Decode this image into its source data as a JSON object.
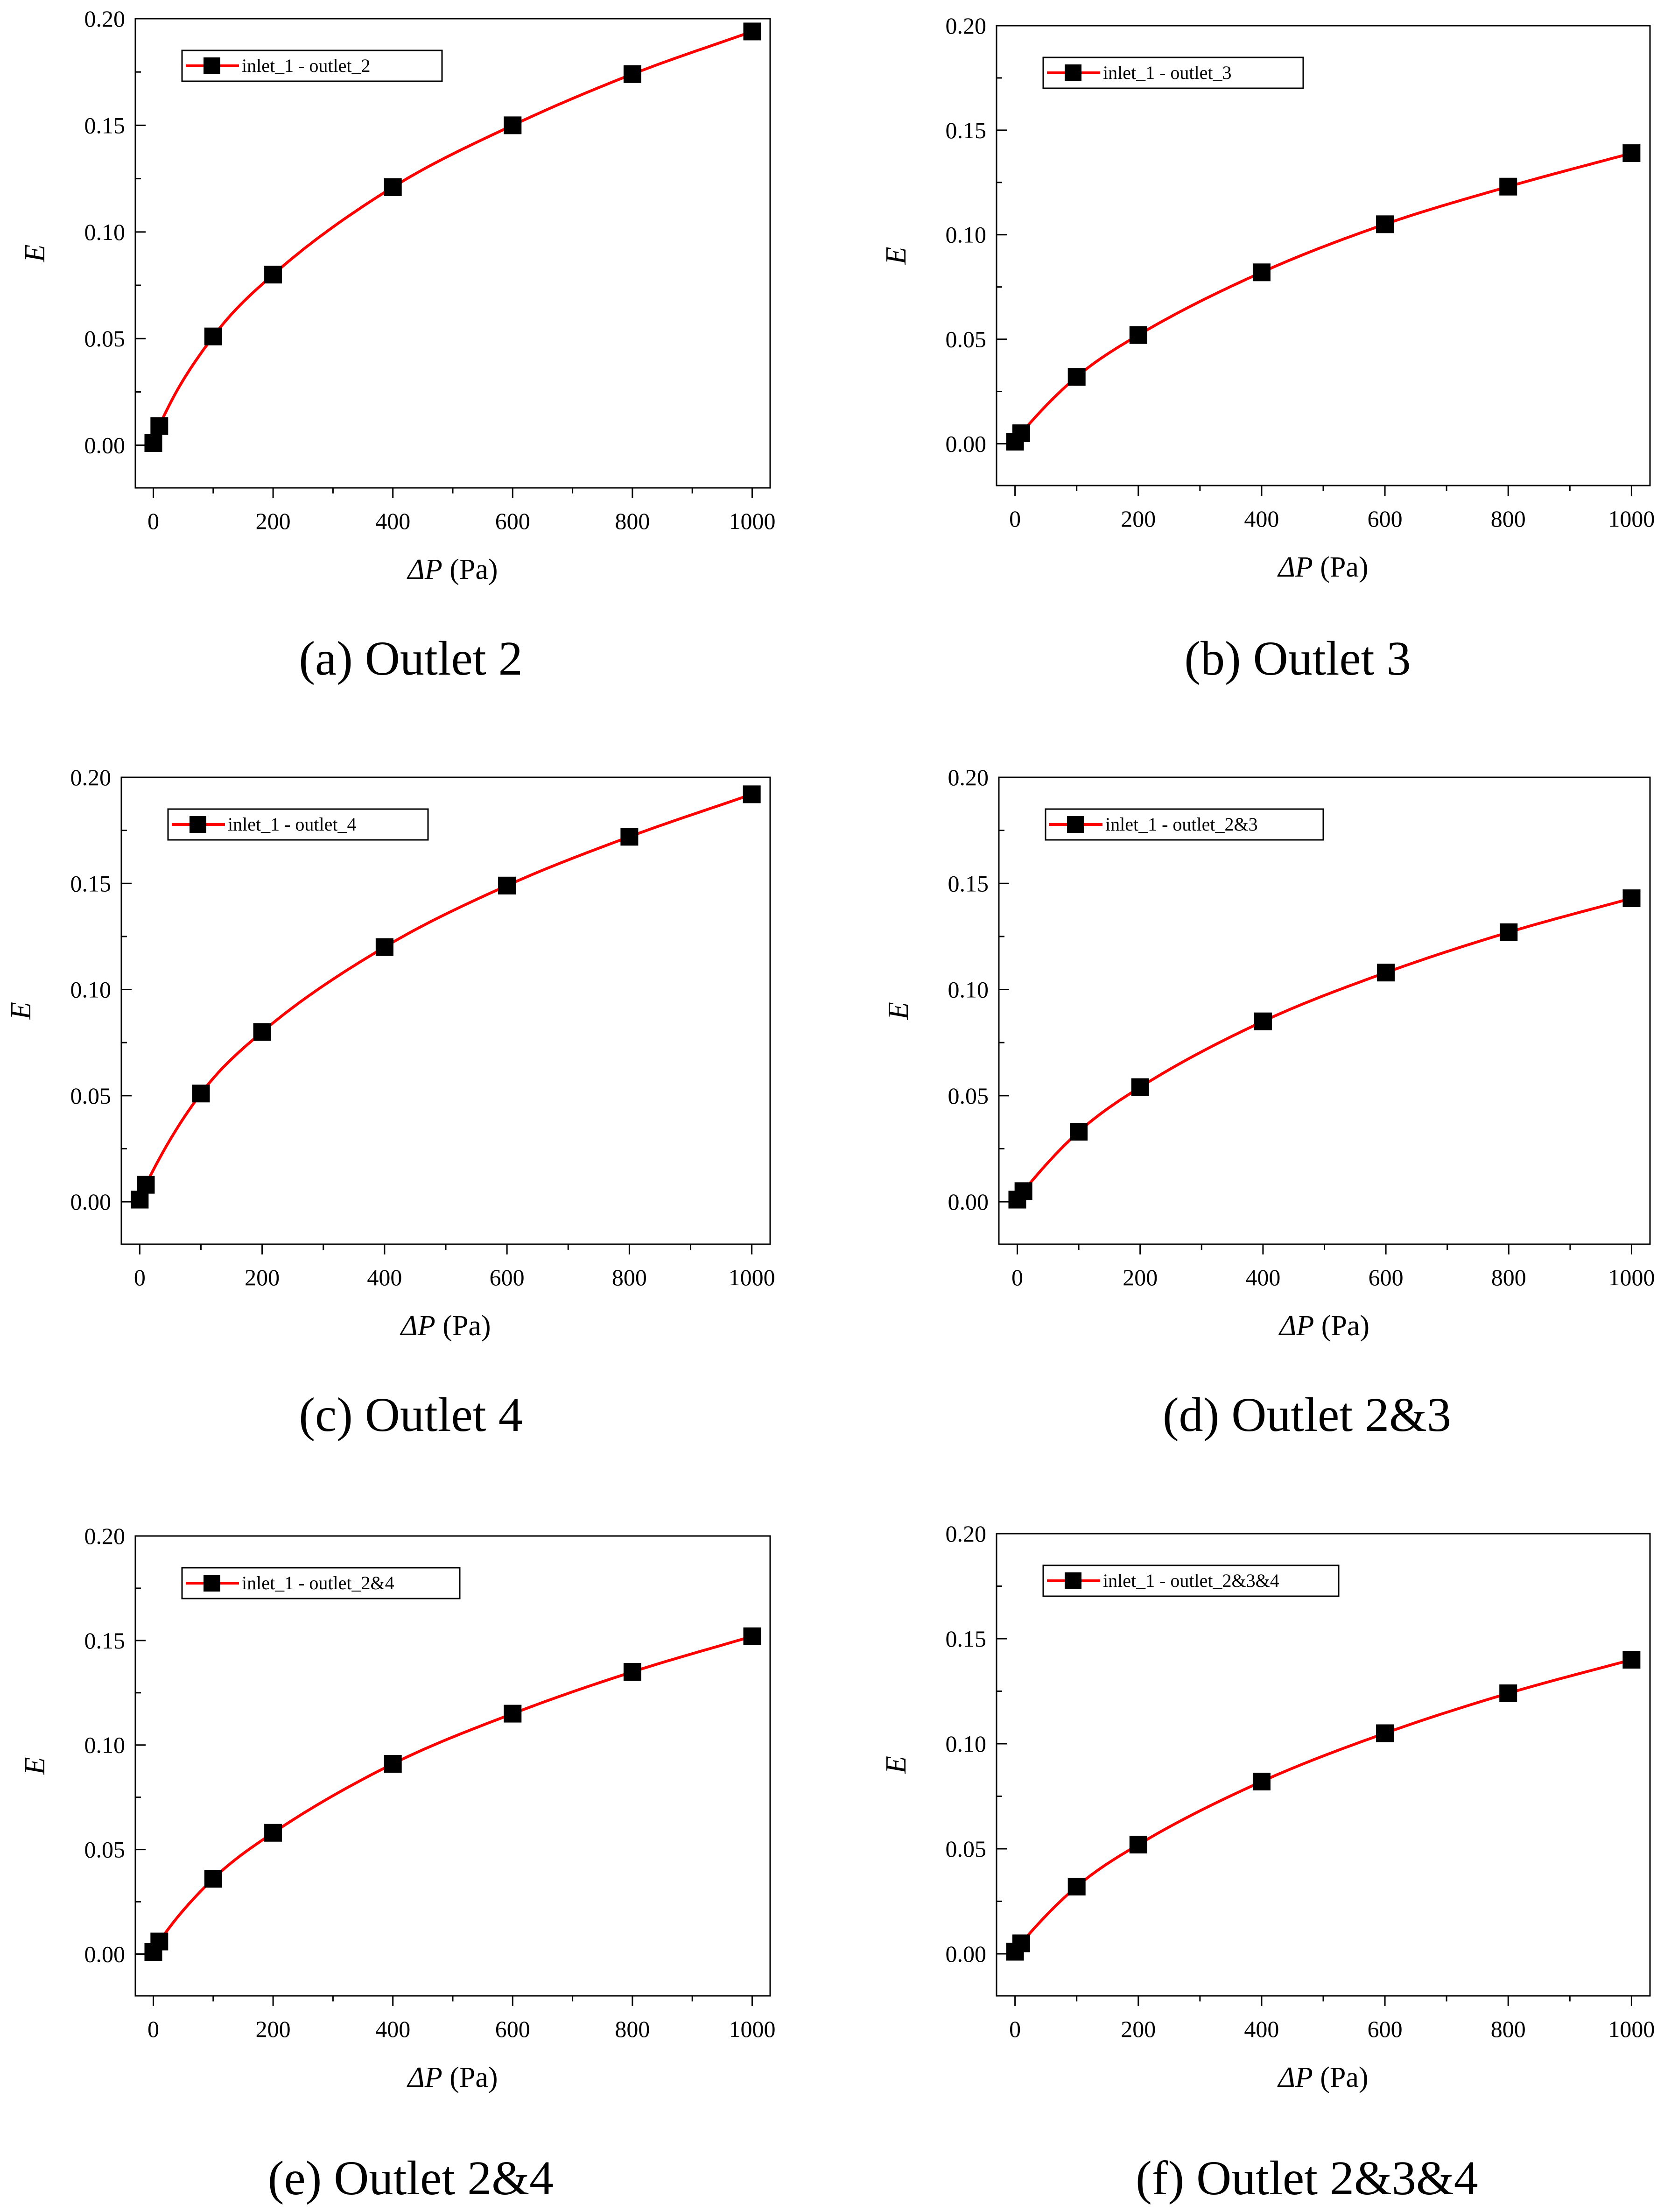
{
  "chart_data": [
    {
      "type": "line",
      "caption": "(a) Outlet 2",
      "xlabel_symbol": "ΔP",
      "xlabel_unit": " (Pa)",
      "ylabel": "E",
      "legend": "inlet_1 - outlet_2",
      "xlim": [
        -30,
        1030
      ],
      "ylim": [
        -0.02,
        0.2
      ],
      "xticks": [
        0,
        200,
        400,
        600,
        800,
        1000
      ],
      "yticks": [
        0.0,
        0.05,
        0.1,
        0.15,
        0.2
      ],
      "x": [
        0,
        10,
        100,
        200,
        400,
        600,
        800,
        1000
      ],
      "y": [
        0.001,
        0.009,
        0.051,
        0.08,
        0.121,
        0.15,
        0.174,
        0.194
      ],
      "line_color": "#ff0000",
      "marker_color": "#000000"
    },
    {
      "type": "line",
      "caption": "(b) Outlet 3",
      "xlabel_symbol": "ΔP",
      "xlabel_unit": " (Pa)",
      "ylabel": "E",
      "legend": "inlet_1 - outlet_3",
      "xlim": [
        -30,
        1030
      ],
      "ylim": [
        -0.02,
        0.2
      ],
      "xticks": [
        0,
        200,
        400,
        600,
        800,
        1000
      ],
      "yticks": [
        0.0,
        0.05,
        0.1,
        0.15,
        0.2
      ],
      "x": [
        0,
        10,
        100,
        200,
        400,
        600,
        800,
        1000
      ],
      "y": [
        0.001,
        0.005,
        0.032,
        0.052,
        0.082,
        0.105,
        0.123,
        0.139
      ],
      "line_color": "#ff0000",
      "marker_color": "#000000"
    },
    {
      "type": "line",
      "caption": "(c) Outlet 4",
      "xlabel_symbol": "ΔP",
      "xlabel_unit": " (Pa)",
      "ylabel": "E",
      "legend": "inlet_1 - outlet_4",
      "xlim": [
        -30,
        1030
      ],
      "ylim": [
        -0.02,
        0.2
      ],
      "xticks": [
        0,
        200,
        400,
        600,
        800,
        1000
      ],
      "yticks": [
        0.0,
        0.05,
        0.1,
        0.15,
        0.2
      ],
      "x": [
        0,
        10,
        100,
        200,
        400,
        600,
        800,
        1000
      ],
      "y": [
        0.001,
        0.008,
        0.051,
        0.08,
        0.12,
        0.149,
        0.172,
        0.192
      ],
      "line_color": "#ff0000",
      "marker_color": "#000000"
    },
    {
      "type": "line",
      "caption": "(d) Outlet 2&3",
      "xlabel_symbol": "ΔP",
      "xlabel_unit": " (Pa)",
      "ylabel": "E",
      "legend": "inlet_1 - outlet_2&3",
      "xlim": [
        -30,
        1030
      ],
      "ylim": [
        -0.02,
        0.2
      ],
      "xticks": [
        0,
        200,
        400,
        600,
        800,
        1000
      ],
      "yticks": [
        0.0,
        0.05,
        0.1,
        0.15,
        0.2
      ],
      "x": [
        0,
        10,
        100,
        200,
        400,
        600,
        800,
        1000
      ],
      "y": [
        0.001,
        0.005,
        0.033,
        0.054,
        0.085,
        0.108,
        0.127,
        0.143
      ],
      "line_color": "#ff0000",
      "marker_color": "#000000"
    },
    {
      "type": "line",
      "caption": "(e) Outlet 2&4",
      "xlabel_symbol": "ΔP",
      "xlabel_unit": " (Pa)",
      "ylabel": "E",
      "legend": "inlet_1 - outlet_2&4",
      "xlim": [
        -30,
        1030
      ],
      "ylim": [
        -0.02,
        0.2
      ],
      "xticks": [
        0,
        200,
        400,
        600,
        800,
        1000
      ],
      "yticks": [
        0.0,
        0.05,
        0.1,
        0.15,
        0.2
      ],
      "x": [
        0,
        10,
        100,
        200,
        400,
        600,
        800,
        1000
      ],
      "y": [
        0.001,
        0.006,
        0.036,
        0.058,
        0.091,
        0.115,
        0.135,
        0.152
      ],
      "line_color": "#ff0000",
      "marker_color": "#000000"
    },
    {
      "type": "line",
      "caption": "(f) Outlet 2&3&4",
      "xlabel_symbol": "ΔP",
      "xlabel_unit": " (Pa)",
      "ylabel": "E",
      "legend": "inlet_1 - outlet_2&3&4",
      "xlim": [
        -30,
        1030
      ],
      "ylim": [
        -0.02,
        0.2
      ],
      "xticks": [
        0,
        200,
        400,
        600,
        800,
        1000
      ],
      "yticks": [
        0.0,
        0.05,
        0.1,
        0.15,
        0.2
      ],
      "x": [
        0,
        10,
        100,
        200,
        400,
        600,
        800,
        1000
      ],
      "y": [
        0.001,
        0.005,
        0.032,
        0.052,
        0.082,
        0.105,
        0.124,
        0.14
      ],
      "line_color": "#ff0000",
      "marker_color": "#000000"
    }
  ]
}
